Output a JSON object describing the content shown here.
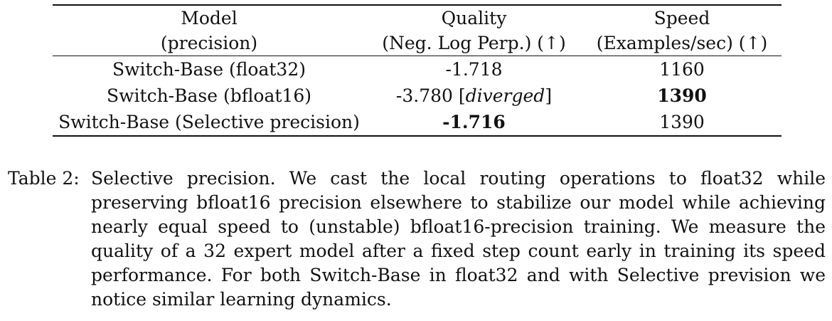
{
  "table": {
    "header": {
      "model": [
        "Model",
        "(precision)"
      ],
      "quality": [
        "Quality",
        "(Neg. Log Perp.) (↑)"
      ],
      "speed": [
        "Speed",
        "(Examples/sec) (↑)"
      ]
    },
    "rows": [
      {
        "model": "Switch-Base (float32)",
        "quality": "-1.718",
        "quality_note": "",
        "speed": "1160"
      },
      {
        "model": "Switch-Base (bfloat16)",
        "quality": "-3.780",
        "quality_note": "diverged",
        "speed": "1390"
      },
      {
        "model": "Switch-Base (Selective precision)",
        "quality": "-1.716",
        "quality_note": "",
        "speed": "1390"
      }
    ]
  },
  "caption": {
    "label": "Table 2:",
    "text": "Selective precision. We cast the local routing operations to float32 while preserving bfloat16 precision elsewhere to stabilize our model while achieving nearly equal speed to (unstable) bfloat16-precision training. We measure the quality of a 32 expert model after a fixed step count early in training its speed performance. For both Switch-Base in float32 and with Selective prevision we notice similar learning dynamics."
  }
}
